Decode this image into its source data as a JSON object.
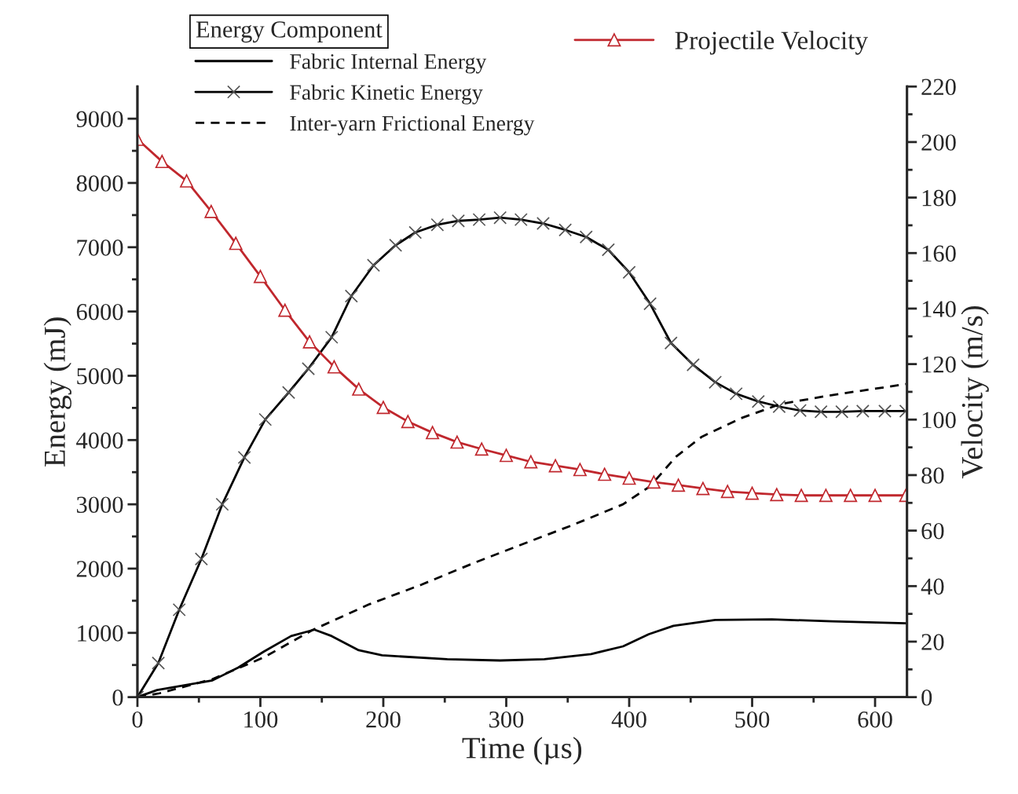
{
  "chart_data": {
    "type": "line",
    "xlabel": "Time (µs)",
    "ylabel": "Energy (mJ)",
    "y2label": "Velocity (m/s)",
    "legend_title": "Energy Component",
    "legend": "top",
    "xlim": [
      0,
      626
    ],
    "ylim": [
      0,
      9500
    ],
    "y2lim": [
      0,
      220
    ],
    "xticks": [
      0,
      {
        "value": 50,
        "label": null
      },
      100,
      {
        "value": 150,
        "label": null
      },
      200,
      {
        "value": 250,
        "label": null
      },
      300,
      {
        "value": 350,
        "label": null
      },
      400,
      {
        "value": 450,
        "label": null
      },
      500,
      {
        "value": 550,
        "label": null
      },
      600
    ],
    "yticks": [
      0,
      {
        "value": 500,
        "label": null
      },
      1000,
      {
        "value": 1500,
        "label": null
      },
      2000,
      {
        "value": 2500,
        "label": null
      },
      3000,
      {
        "value": 3500,
        "label": null
      },
      4000,
      {
        "value": 4500,
        "label": null
      },
      5000,
      {
        "value": 5500,
        "label": null
      },
      6000,
      {
        "value": 6500,
        "label": null
      },
      7000,
      {
        "value": 7500,
        "label": null
      },
      8000,
      {
        "value": 8500,
        "label": null
      },
      9000
    ],
    "y2ticks": [
      0,
      {
        "value": 10,
        "label": null
      },
      20,
      {
        "value": 30,
        "label": null
      },
      40,
      {
        "value": 50,
        "label": null
      },
      60,
      {
        "value": 70,
        "label": null
      },
      80,
      {
        "value": 90,
        "label": null
      },
      100,
      {
        "value": 110,
        "label": null
      },
      120,
      {
        "value": 130,
        "label": null
      },
      140,
      {
        "value": 150,
        "label": null
      },
      160,
      {
        "value": 170,
        "label": null
      },
      180,
      {
        "value": 190,
        "label": null
      },
      200,
      {
        "value": 210,
        "label": null
      },
      220
    ],
    "grid": false,
    "series": [
      {
        "name": "Fabric Internal Energy",
        "color": "#000000",
        "line_style": "solid",
        "marker": "none",
        "x": [
          0,
          16,
          61,
          82,
          103,
          125,
          144,
          158,
          180,
          199,
          252,
          295,
          331,
          369,
          395,
          416,
          436,
          470,
          516,
          565,
          625
        ],
        "values": [
          0,
          110,
          260,
          460,
          710,
          950,
          1050,
          950,
          730,
          650,
          590,
          570,
          590,
          670,
          790,
          980,
          1110,
          1200,
          1210,
          1180,
          1150
        ]
      },
      {
        "name": "Fabric Kinetic Energy",
        "color": "#000000",
        "line_style": "solid",
        "marker": "cross",
        "x": [
          0,
          17,
          34,
          52,
          69,
          87,
          104,
          123,
          139,
          158,
          174,
          192,
          210,
          226,
          244,
          261,
          278,
          295,
          312,
          330,
          348,
          365,
          383,
          400,
          417,
          434,
          452,
          470,
          487,
          505,
          522,
          539,
          556,
          573,
          590,
          608,
          625
        ],
        "values": [
          0,
          530,
          1360,
          2150,
          3000,
          3730,
          4320,
          4740,
          5110,
          5600,
          6240,
          6720,
          7030,
          7230,
          7350,
          7410,
          7430,
          7460,
          7430,
          7370,
          7270,
          7160,
          6960,
          6610,
          6120,
          5510,
          5170,
          4900,
          4720,
          4600,
          4520,
          4460,
          4440,
          4440,
          4450,
          4450,
          4450
        ]
      },
      {
        "name": "Inter-yarn Frictional Energy",
        "color": "#000000",
        "line_style": "dashed",
        "marker": "none",
        "x": [
          0,
          18,
          61,
          103,
          142,
          188,
          231,
          274,
          316,
          353,
          395,
          417,
          438,
          459,
          491,
          523,
          565,
          625
        ],
        "values": [
          0,
          60,
          280,
          620,
          1040,
          1440,
          1750,
          2090,
          2400,
          2670,
          3000,
          3280,
          3740,
          4050,
          4340,
          4560,
          4700,
          4870
        ]
      },
      {
        "name": "Projectile Velocity",
        "color": "#c0272d",
        "axis": "y2",
        "line_style": "solid",
        "marker": "triangle",
        "x": [
          0,
          20,
          40,
          60,
          80,
          100,
          120,
          140,
          160,
          180,
          200,
          220,
          240,
          260,
          280,
          300,
          320,
          340,
          360,
          380,
          400,
          420,
          440,
          460,
          480,
          500,
          520,
          540,
          560,
          580,
          600,
          625
        ],
        "values": [
          201,
          193,
          186,
          175,
          163.5,
          151.6,
          139.4,
          128,
          119,
          111,
          104.4,
          99.3,
          95.3,
          91.9,
          89.4,
          87.1,
          84.8,
          83.4,
          82,
          80.3,
          78.9,
          77.5,
          76.4,
          75.2,
          74.1,
          73.5,
          73,
          72.7,
          72.7,
          72.7,
          72.7,
          72.7
        ]
      }
    ]
  }
}
